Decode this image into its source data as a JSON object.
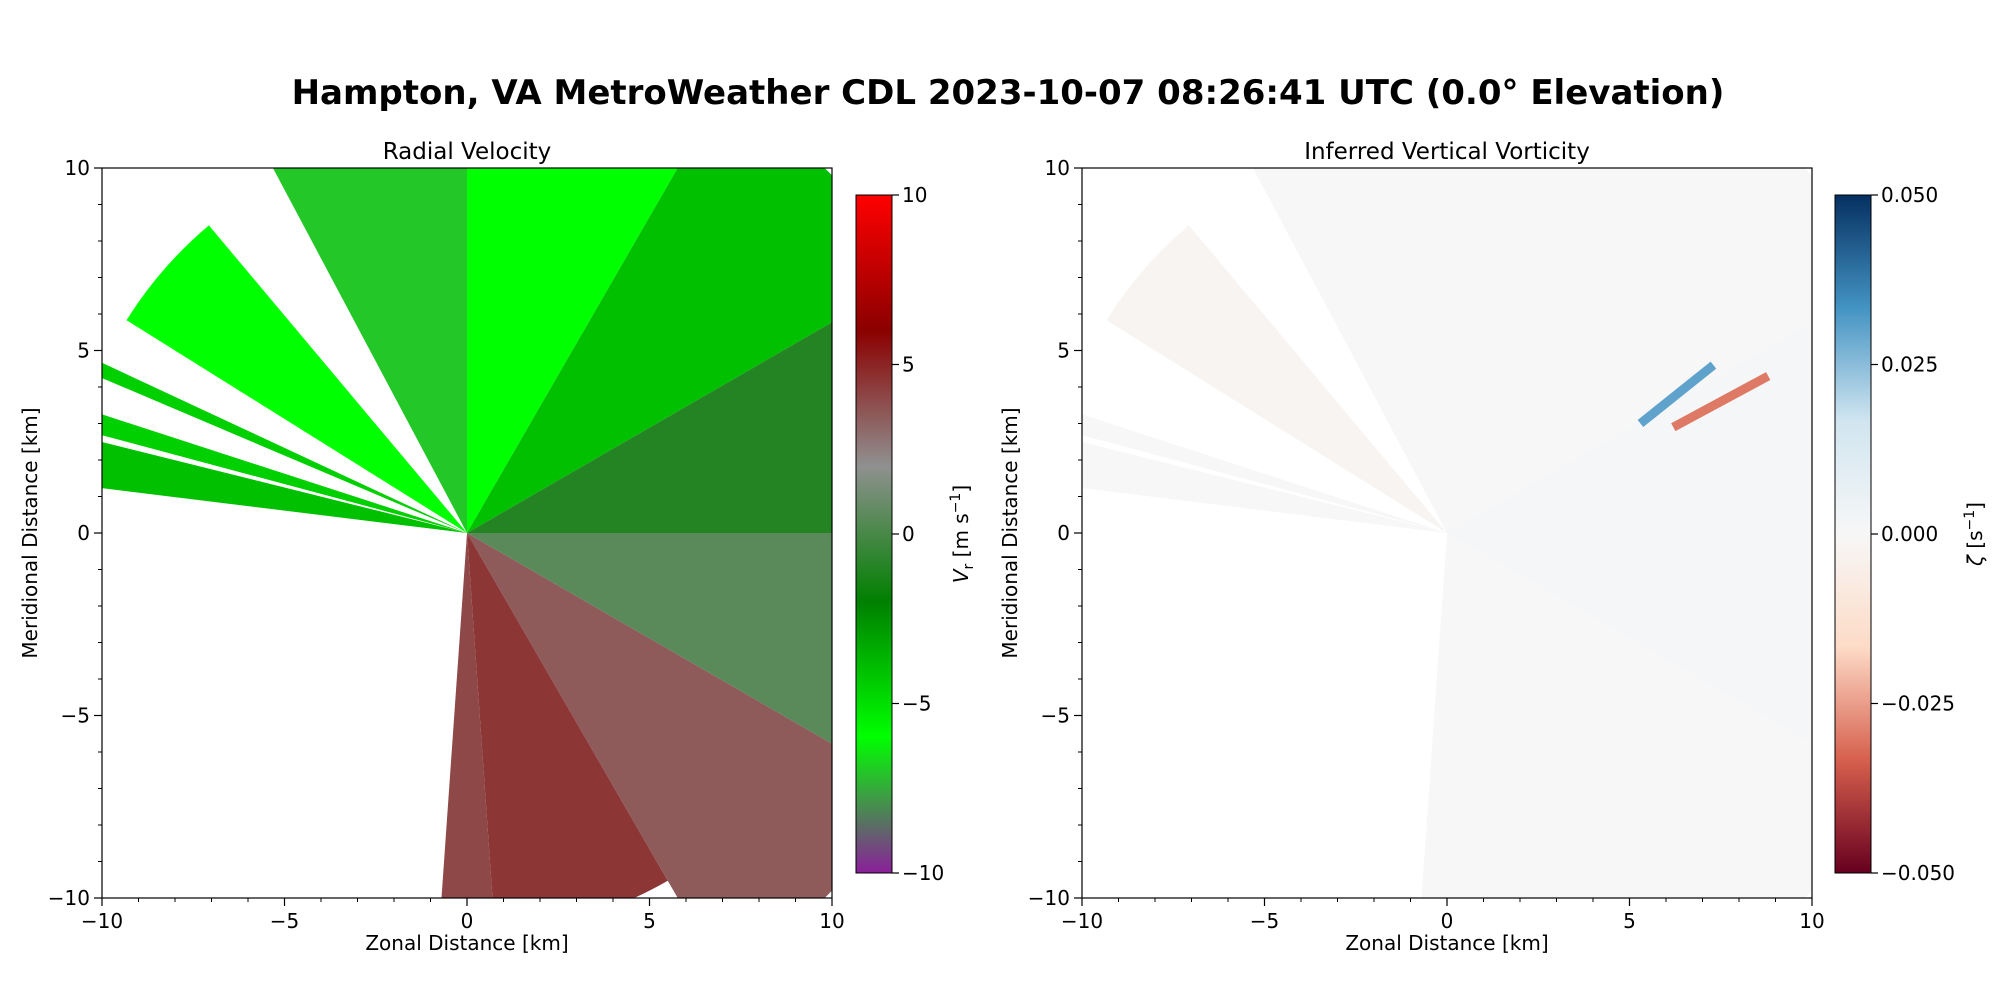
{
  "figure": {
    "suptitle": "Hampton, VA MetroWeather CDL 2023-10-07 08:26:41 UTC (0.0° Elevation)"
  },
  "chart_data": [
    {
      "type": "heatmap",
      "title": "Radial Velocity",
      "xlabel": "Zonal Distance [km]",
      "ylabel": "Meridional Distance [km]",
      "xlim": [
        -10,
        10
      ],
      "ylim": [
        -10,
        10
      ],
      "xticks": [
        -10,
        -5,
        0,
        5,
        10
      ],
      "yticks": [
        -10,
        -5,
        0,
        5,
        10
      ],
      "xtick_labels": [
        "−10",
        "−5",
        "0",
        "5",
        "10"
      ],
      "ytick_labels": [
        "−10",
        "−5",
        "0",
        "5",
        "10"
      ],
      "colorbar": {
        "label": "Vr [m s−1]",
        "label_base": "V",
        "label_sub": "r",
        "label_unit": " [m s",
        "label_sup": "−1",
        "label_close": "]",
        "range": [
          -10,
          10
        ],
        "ticks": [
          -10,
          -5,
          0,
          5,
          10
        ],
        "tick_labels": [
          "−10",
          "−5",
          "0",
          "5",
          "10"
        ],
        "colors": [
          "#8b1f9a",
          "#00ff00",
          "#008000",
          "#909090",
          "#8b0000",
          "#ff0000"
        ]
      },
      "field_description": "Green (negative, towards radar) north of origin; red (positive, away) south-east of origin; gray near zero along east; no data west and south-west sector",
      "sectors": [
        {
          "az_from": -67,
          "az_to": -65,
          "range_km": 14,
          "value": -4.5
        },
        {
          "az_from": -83,
          "az_to": -76,
          "range_km": 14,
          "value": -4.0
        },
        {
          "az_from": -75,
          "az_to": -72,
          "range_km": 14,
          "value": -4.5
        },
        {
          "az_from": -58,
          "az_to": -40,
          "range_km": 11,
          "value": -6.0
        },
        {
          "az_from": -28,
          "az_to": 0,
          "range_km": 14,
          "value": -7.0
        },
        {
          "az_from": 0,
          "az_to": 30,
          "range_km": 14,
          "value": -6.0
        },
        {
          "az_from": 30,
          "az_to": 60,
          "range_km": 14,
          "value": -4.0
        },
        {
          "az_from": 60,
          "az_to": 90,
          "range_km": 14,
          "value": -1.0
        },
        {
          "az_from": 90,
          "az_to": 120,
          "range_km": 14,
          "value": 0.5
        },
        {
          "az_from": 120,
          "az_to": 150,
          "range_km": 14,
          "value": 3.5
        },
        {
          "az_from": 150,
          "az_to": 176,
          "range_km": 11,
          "value": 4.5
        },
        {
          "az_from": 176,
          "az_to": 184,
          "range_km": 10.1,
          "value": 4.0
        }
      ]
    },
    {
      "type": "heatmap",
      "title": "Inferred Vertical Vorticity",
      "xlabel": "Zonal Distance [km]",
      "ylabel": "Meridional Distance [km]",
      "xlim": [
        -10,
        10
      ],
      "ylim": [
        -10,
        10
      ],
      "xticks": [
        -10,
        -5,
        0,
        5,
        10
      ],
      "yticks": [
        -10,
        -5,
        0,
        5,
        10
      ],
      "xtick_labels": [
        "−10",
        "−5",
        "0",
        "5",
        "10"
      ],
      "ytick_labels": [
        "−10",
        "−5",
        "0",
        "5",
        "10"
      ],
      "colorbar": {
        "label": "ζ [s−1]",
        "label_base": "ζ",
        "label_unit": " [s",
        "label_sup": "−1",
        "label_close": "]",
        "range": [
          -0.05,
          0.05
        ],
        "ticks": [
          -0.05,
          -0.025,
          0,
          0.025,
          0.05
        ],
        "tick_labels": [
          "−0.050",
          "−0.025",
          "0.000",
          "0.025",
          "0.050"
        ],
        "colors": [
          "#67001f",
          "#d6604d",
          "#fddbc7",
          "#f7f7f7",
          "#d1e5f0",
          "#4393c3",
          "#053061"
        ]
      },
      "field_description": "Mostly near-zero vorticity with faint red/blue speckle, strong positive streak near (6.5, 3.5) and negative streak near (8, 3.5)",
      "sectors": [
        {
          "az_from": -83,
          "az_to": -76,
          "range_km": 14,
          "value": 0.0
        },
        {
          "az_from": -75,
          "az_to": -72,
          "range_km": 14,
          "value": 0.0
        },
        {
          "az_from": -58,
          "az_to": -40,
          "range_km": 11,
          "value": -0.002
        },
        {
          "az_from": -28,
          "az_to": 0,
          "range_km": 14,
          "value": 0.0
        },
        {
          "az_from": 0,
          "az_to": 60,
          "range_km": 14,
          "value": 0.0
        },
        {
          "az_from": 60,
          "az_to": 120,
          "range_km": 14,
          "value": 0.001
        },
        {
          "az_from": 120,
          "az_to": 176,
          "range_km": 14,
          "value": 0.0
        },
        {
          "az_from": 176,
          "az_to": 184,
          "range_km": 10.1,
          "value": 0.0
        }
      ],
      "features": [
        {
          "x0": 5.3,
          "y0": 3.0,
          "x1": 7.3,
          "y1": 4.6,
          "value": 0.03
        },
        {
          "x0": 6.2,
          "y0": 2.9,
          "x1": 8.8,
          "y1": 4.3,
          "value": -0.03
        }
      ]
    }
  ]
}
